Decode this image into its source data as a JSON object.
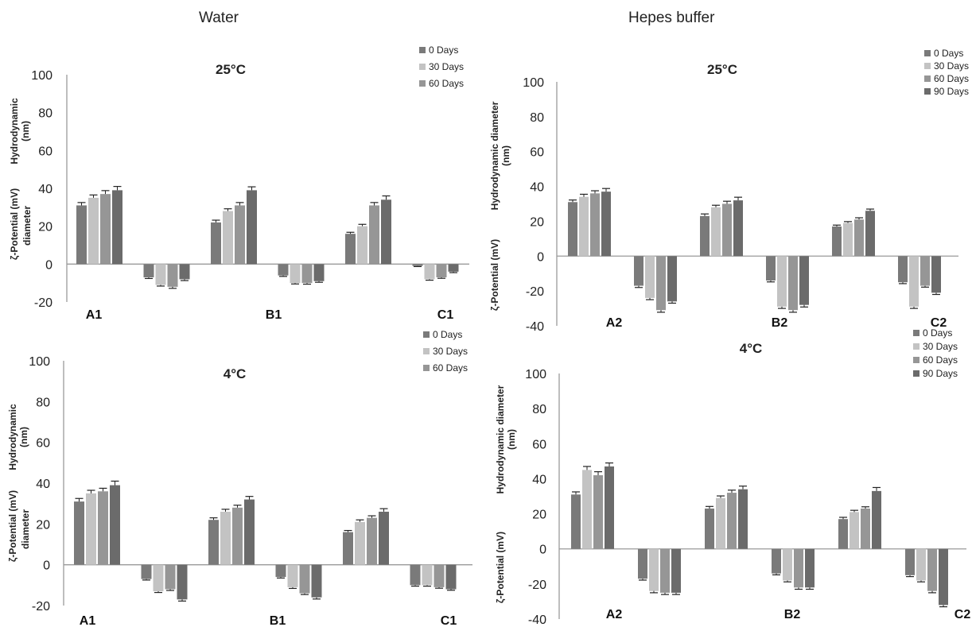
{
  "headers": {
    "water": "Water",
    "hepes": "Hepes buffer"
  },
  "colors": {
    "s0": "#7a7a7a",
    "s30": "#c3c3c3",
    "s60": "#969696",
    "s90": "#6b6b6b",
    "axis": "#9a9a9a",
    "error": "#222222"
  },
  "chart_data": [
    {
      "id": "water25",
      "type": "bar",
      "title": "25°C",
      "ylabel": [
        "Hydrodynamic",
        "(nm)",
        "diameter",
        "ζ-Potential (mV)"
      ],
      "ylim": [
        -20,
        100
      ],
      "yticks": [
        100,
        80,
        60,
        40,
        20,
        0,
        -20
      ],
      "group_labels": [
        "A1",
        "",
        "B1",
        "",
        "C1",
        ""
      ],
      "series": [
        {
          "name": "0 Days",
          "values": [
            31,
            -7,
            22,
            -6,
            16,
            -1
          ],
          "errors": [
            1.5,
            0.6,
            1.2,
            0.5,
            0.8,
            0.3
          ]
        },
        {
          "name": "30 Days",
          "values": [
            35,
            -11,
            28,
            -10,
            20,
            -8
          ],
          "errors": [
            1.5,
            0.6,
            1.2,
            0.5,
            1.0,
            0.5
          ]
        },
        {
          "name": "60 Days",
          "values": [
            37,
            -12,
            31,
            -10,
            31,
            -7
          ],
          "errors": [
            1.8,
            0.8,
            1.5,
            0.6,
            1.5,
            0.5
          ]
        },
        {
          "name": "",
          "values": [
            39,
            -8,
            39,
            -9,
            34,
            -4
          ],
          "errors": [
            2.0,
            0.7,
            1.8,
            0.6,
            2.0,
            0.5
          ]
        }
      ]
    },
    {
      "id": "hepes25",
      "type": "bar",
      "title": "25°C",
      "ylabel": [
        "Hydrodynamic diameter",
        "(nm)",
        "",
        "ζ-Potential (mV)"
      ],
      "ylim": [
        -40,
        100
      ],
      "yticks": [
        100,
        80,
        60,
        40,
        20,
        0,
        -20,
        -40
      ],
      "group_labels": [
        "A2",
        "",
        "B2",
        "",
        "C2",
        ""
      ],
      "series": [
        {
          "name": "0 Days",
          "values": [
            31,
            -17,
            23,
            -14,
            17,
            -15
          ],
          "errors": [
            1.2,
            1.0,
            1.2,
            0.8,
            0.8,
            0.8
          ]
        },
        {
          "name": "30 Days",
          "values": [
            34,
            -24,
            28,
            -29,
            19,
            -29
          ],
          "errors": [
            1.5,
            1.0,
            1.2,
            1.0,
            0.8,
            1.0
          ]
        },
        {
          "name": "60 Days",
          "values": [
            36,
            -31,
            30,
            -31,
            21,
            -17
          ],
          "errors": [
            1.5,
            1.2,
            1.5,
            1.2,
            1.0,
            0.8
          ]
        },
        {
          "name": "90 Days",
          "values": [
            37,
            -26,
            32,
            -28,
            26,
            -21
          ],
          "errors": [
            1.8,
            1.0,
            1.8,
            1.2,
            1.0,
            1.0
          ]
        }
      ]
    },
    {
      "id": "water4",
      "type": "bar",
      "title": "4°C",
      "ylabel": [
        "Hydrodynamic",
        "(nm)",
        "diameter",
        "ζ-Potential (mV)"
      ],
      "ylim": [
        -20,
        100
      ],
      "yticks": [
        100,
        80,
        60,
        40,
        20,
        0,
        -20
      ],
      "group_labels": [
        "A1",
        "",
        "B1",
        "",
        "C1",
        ""
      ],
      "series": [
        {
          "name": "0 Days",
          "values": [
            31,
            -7,
            22,
            -6,
            16,
            -10
          ],
          "errors": [
            1.5,
            0.5,
            1.0,
            0.5,
            0.8,
            0.5
          ]
        },
        {
          "name": "30 Days",
          "values": [
            35,
            -13,
            26,
            -11,
            21,
            -10
          ],
          "errors": [
            1.5,
            0.6,
            1.2,
            0.6,
            1.0,
            0.5
          ]
        },
        {
          "name": "60 Days",
          "values": [
            36,
            -12,
            28,
            -14,
            23,
            -11
          ],
          "errors": [
            1.5,
            0.6,
            1.2,
            0.6,
            1.0,
            0.5
          ]
        },
        {
          "name": "",
          "values": [
            39,
            -17,
            32,
            -16,
            26,
            -12
          ],
          "errors": [
            2.0,
            0.8,
            1.5,
            0.8,
            1.5,
            0.5
          ]
        }
      ]
    },
    {
      "id": "hepes4",
      "type": "bar",
      "title": "4°C",
      "ylabel": [
        "Hydrodynamic diameter",
        "(nm)",
        "",
        "ζ-Potential (mV)"
      ],
      "ylim": [
        -40,
        100
      ],
      "yticks": [
        100,
        80,
        60,
        40,
        20,
        0,
        -20,
        -40
      ],
      "group_labels": [
        "A2",
        "",
        "B2",
        "",
        "C2",
        ""
      ],
      "series": [
        {
          "name": "0 Days",
          "values": [
            31,
            -17,
            23,
            -14,
            17,
            -15
          ],
          "errors": [
            1.5,
            0.8,
            1.2,
            0.8,
            1.0,
            0.8
          ]
        },
        {
          "name": "30 Days",
          "values": [
            45,
            -24,
            29,
            -18,
            21,
            -18
          ],
          "errors": [
            2.0,
            1.0,
            1.2,
            0.8,
            1.0,
            0.8
          ]
        },
        {
          "name": "60 Days",
          "values": [
            42,
            -25,
            32,
            -22,
            23,
            -24
          ],
          "errors": [
            2.0,
            1.0,
            1.5,
            1.0,
            1.0,
            1.0
          ]
        },
        {
          "name": "90 Days",
          "values": [
            47,
            -25,
            34,
            -22,
            33,
            -32
          ],
          "errors": [
            2.0,
            1.0,
            1.8,
            1.0,
            2.0,
            1.0
          ]
        }
      ]
    }
  ]
}
